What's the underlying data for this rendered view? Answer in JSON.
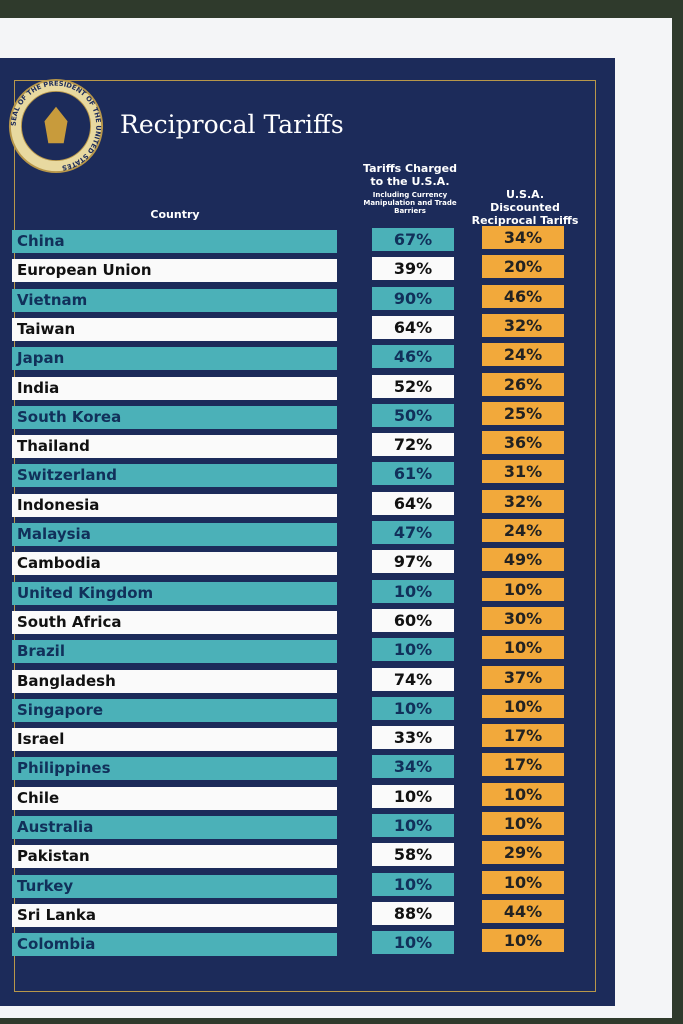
{
  "title": "Reciprocal Tariffs",
  "seal": "SEAL OF THE PRESIDENT OF THE UNITED STATES",
  "table": {
    "headers": {
      "country": "Country",
      "charged": "Tariffs Charged to the U.S.A.",
      "charged_note": "Including Currency Manipulation and Trade Barriers",
      "discounted": "U.S.A. Discounted Reciprocal Tariffs"
    },
    "rows": [
      [
        "China",
        "67%",
        "34%"
      ],
      [
        "European Union",
        "39%",
        "20%"
      ],
      [
        "Vietnam",
        "90%",
        "46%"
      ],
      [
        "Taiwan",
        "64%",
        "32%"
      ],
      [
        "Japan",
        "46%",
        "24%"
      ],
      [
        "India",
        "52%",
        "26%"
      ],
      [
        "South Korea",
        "50%",
        "25%"
      ],
      [
        "Thailand",
        "72%",
        "36%"
      ],
      [
        "Switzerland",
        "61%",
        "31%"
      ],
      [
        "Indonesia",
        "64%",
        "32%"
      ],
      [
        "Malaysia",
        "47%",
        "24%"
      ],
      [
        "Cambodia",
        "97%",
        "49%"
      ],
      [
        "United Kingdom",
        "10%",
        "10%"
      ],
      [
        "South Africa",
        "60%",
        "30%"
      ],
      [
        "Brazil",
        "10%",
        "10%"
      ],
      [
        "Bangladesh",
        "74%",
        "37%"
      ],
      [
        "Singapore",
        "10%",
        "10%"
      ],
      [
        "Israel",
        "33%",
        "17%"
      ],
      [
        "Philippines",
        "34%",
        "17%"
      ],
      [
        "Chile",
        "10%",
        "10%"
      ],
      [
        "Australia",
        "10%",
        "10%"
      ],
      [
        "Pakistan",
        "58%",
        "29%"
      ],
      [
        "Turkey",
        "10%",
        "10%"
      ],
      [
        "Sri Lanka",
        "88%",
        "44%"
      ],
      [
        "Colombia",
        "10%",
        "10%"
      ]
    ]
  }
}
